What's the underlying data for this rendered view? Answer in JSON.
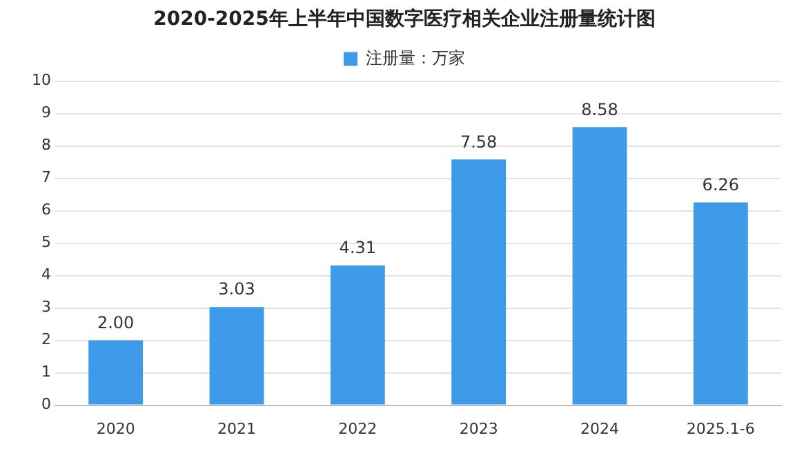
{
  "chart_data": {
    "type": "bar",
    "title": "2020-2025年上半年中国数字医疗相关企业注册量统计图",
    "categories": [
      "2020",
      "2021",
      "2022",
      "2023",
      "2024",
      "2025.1-6"
    ],
    "series": [
      {
        "name": "注册量：万家",
        "color": "#3d9be9",
        "values": [
          2.0,
          3.03,
          4.31,
          7.58,
          8.58,
          6.26
        ],
        "value_labels": [
          "2.00",
          "3.03",
          "4.31",
          "7.58",
          "8.58",
          "6.26"
        ]
      }
    ],
    "ylim": [
      0,
      10
    ],
    "yticks": [
      0,
      1,
      2,
      3,
      4,
      5,
      6,
      7,
      8,
      9,
      10
    ],
    "grid": "y",
    "legend": "top"
  }
}
